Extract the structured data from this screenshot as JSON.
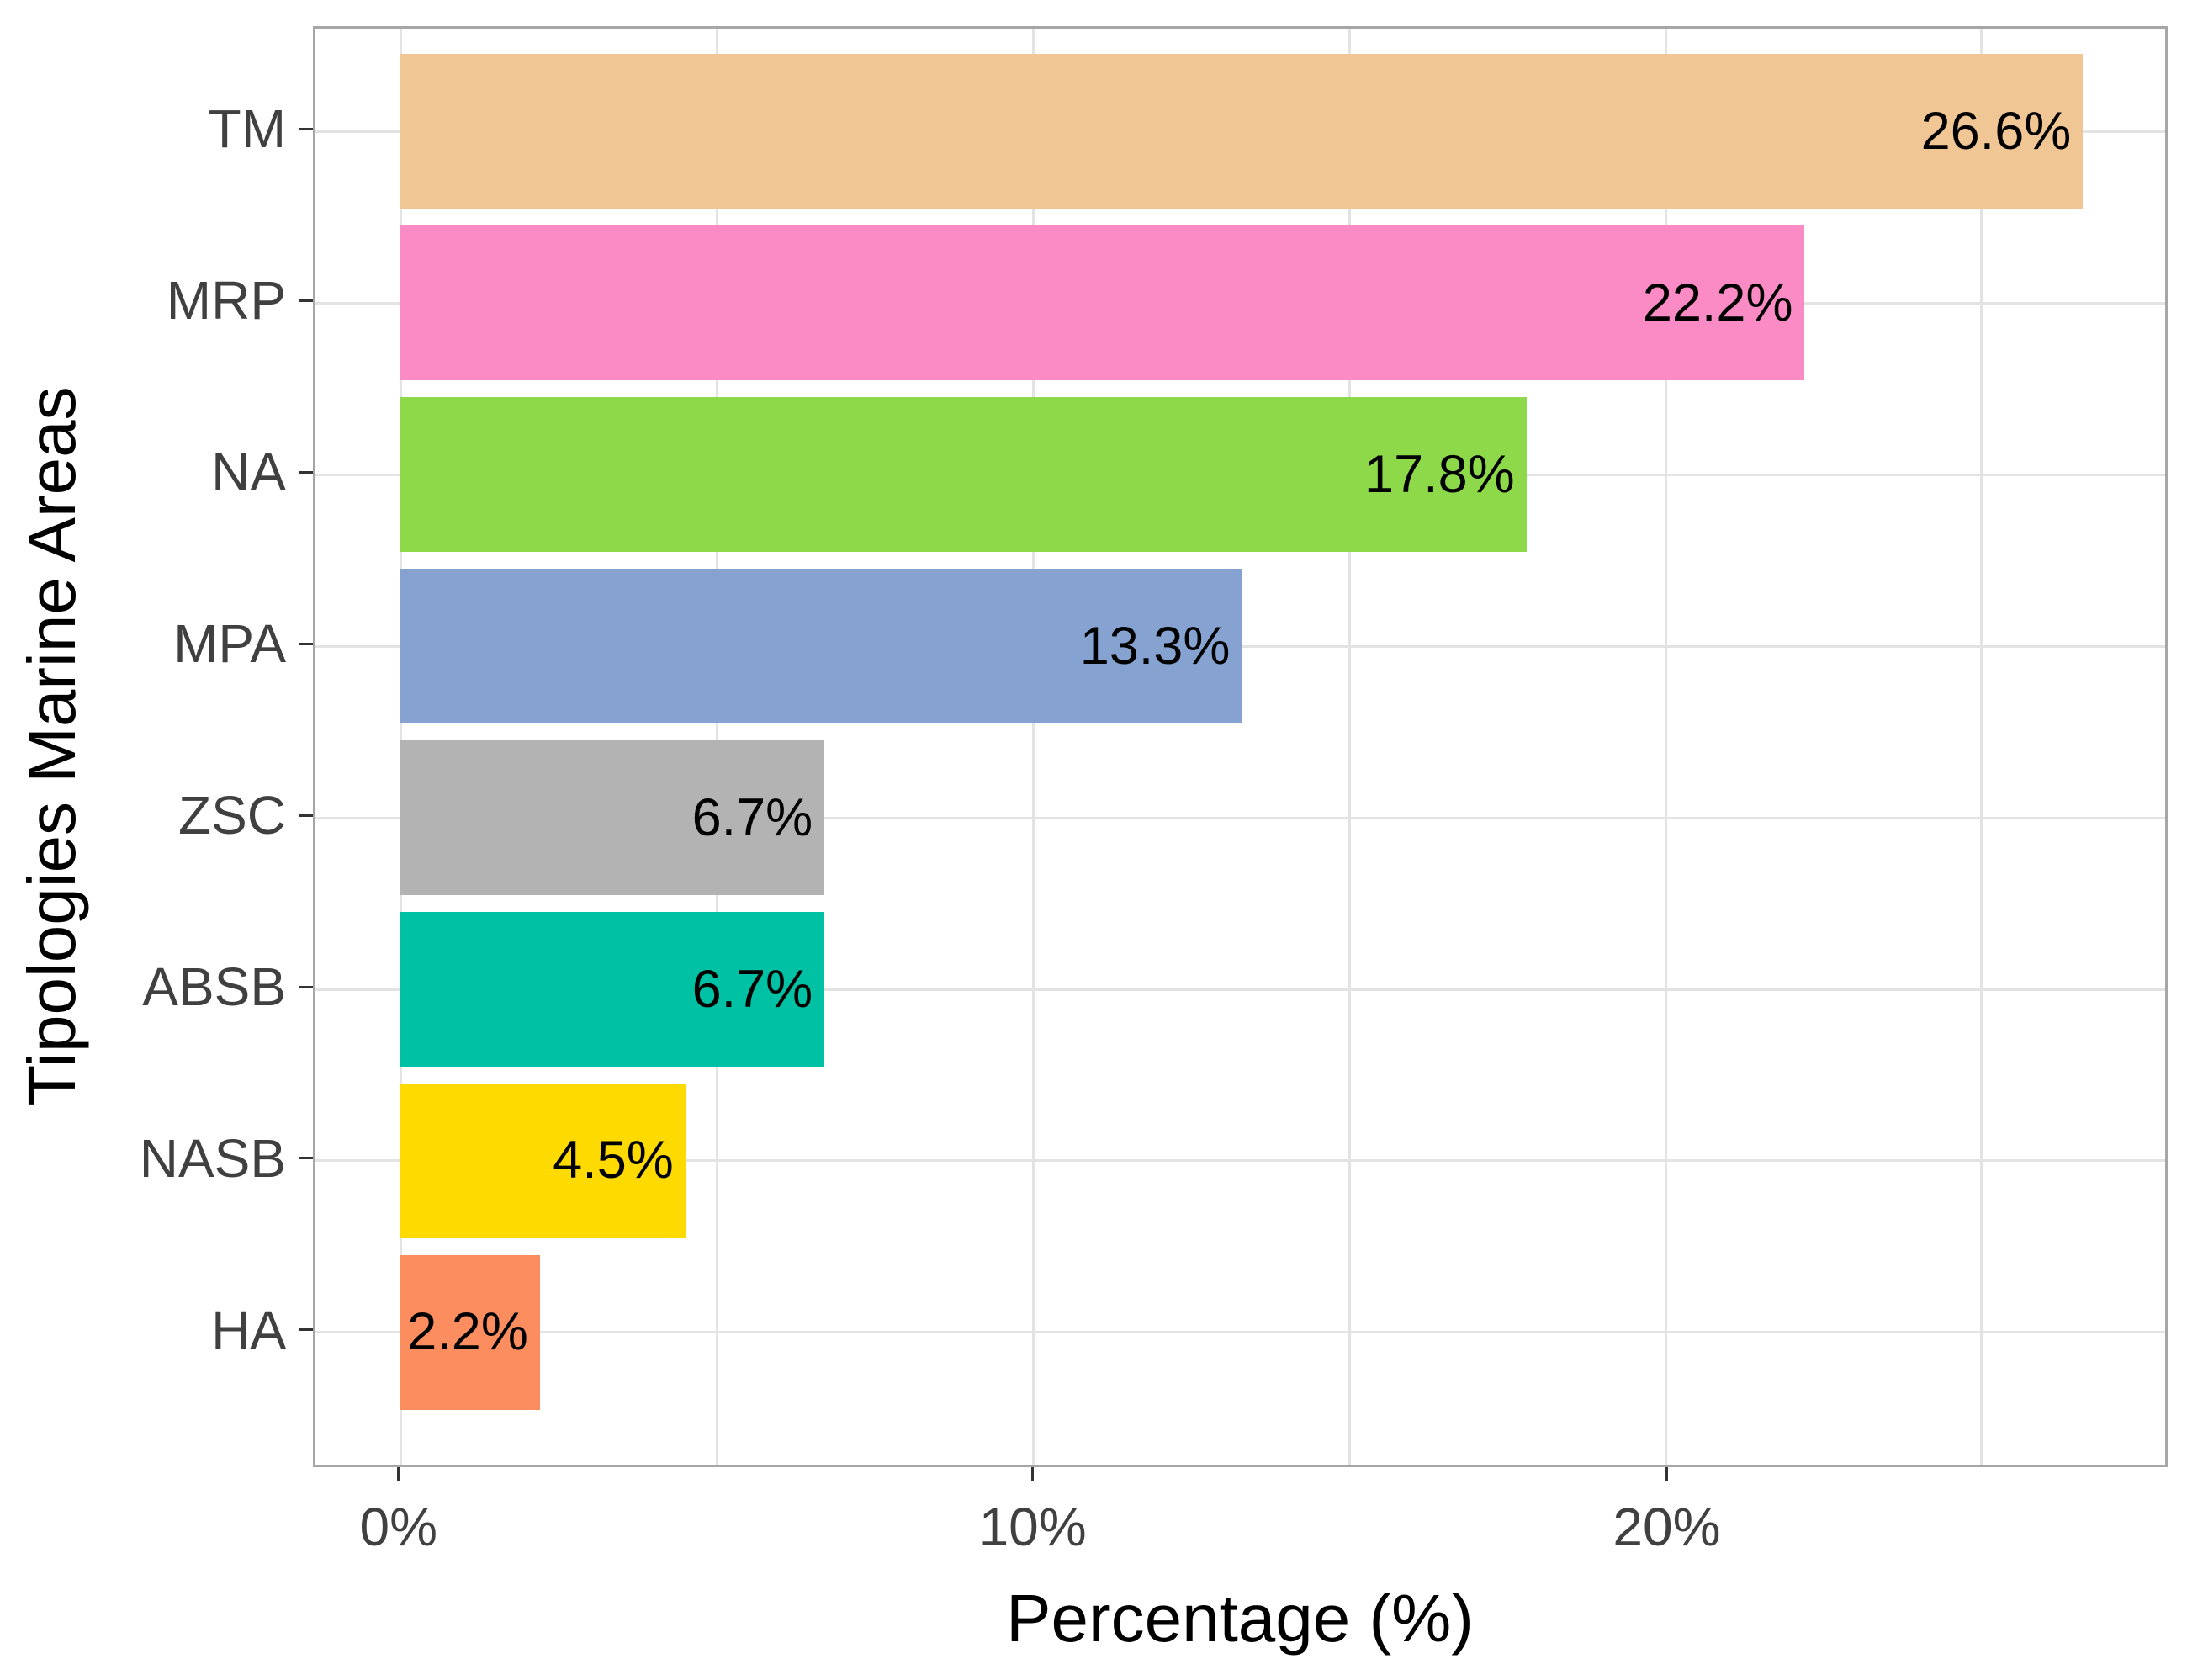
{
  "chart_data": {
    "type": "bar",
    "orientation": "horizontal",
    "title": "",
    "xlabel": "Percentage (%)",
    "ylabel": "Tipologies Marine Areas",
    "categories": [
      "TM",
      "MRP",
      "NA",
      "MPA",
      "ZSC",
      "ABSB",
      "NASB",
      "HA"
    ],
    "values": [
      26.6,
      22.2,
      17.8,
      13.3,
      6.7,
      6.7,
      4.5,
      2.2
    ],
    "value_labels": [
      "26.6%",
      "22.2%",
      "17.8%",
      "13.3%",
      "6.7%",
      "6.7%",
      "4.5%",
      "2.2%"
    ],
    "bar_colors": [
      "#F0C695",
      "#FB8BC4",
      "#8ED94A",
      "#86A2D0",
      "#B3B3B3",
      "#00C1A3",
      "#FFDA00",
      "#FB8D5E"
    ],
    "x_ticks": [
      {
        "value": 0,
        "label": "0%"
      },
      {
        "value": 10,
        "label": "10%"
      },
      {
        "value": 20,
        "label": "20%"
      }
    ],
    "x_minor_gridlines": [
      5,
      15,
      25
    ],
    "xlim": [
      -1.35,
      27.9
    ],
    "grid": true,
    "legend": false,
    "panel_background": "#FFFFFF",
    "panel_border_color": "#A6A6A6",
    "gridline_color": "#E3E3E3",
    "tick_color": "#333333",
    "axis_text_color": "#404040",
    "label_text_color": "#000000"
  }
}
